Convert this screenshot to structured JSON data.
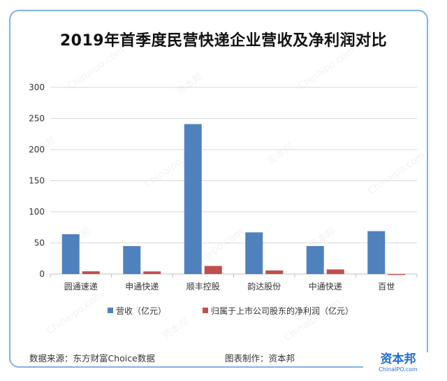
{
  "title": "2019年首季度民营快递企业营收及净利润对比",
  "chart_data": {
    "type": "bar",
    "categories": [
      "圆通速递",
      "申通快递",
      "顺丰控股",
      "韵达股份",
      "中通快递",
      "百世"
    ],
    "series": [
      {
        "name": "营收（亿元）",
        "color": "#4f81bd",
        "values": [
          64,
          45,
          241,
          67,
          45,
          69
        ]
      },
      {
        "name": "归属于上市公司股东的净利润（亿元）",
        "color": "#c0504d",
        "values": [
          4.4,
          4.2,
          13.0,
          5.8,
          7.4,
          -1.5
        ]
      }
    ],
    "ylim": [
      0,
      300
    ],
    "yticks": [
      0,
      50,
      100,
      150,
      200,
      250,
      300
    ],
    "grid": true,
    "legend": "bottom"
  },
  "footer": {
    "source": "数据来源：东方财富Choice数据",
    "credit": "图表制作：资本邦"
  },
  "logo": {
    "main": "资本邦",
    "sub": "ChinaIPO.com"
  },
  "watermark": {
    "cn": "资本邦",
    "en": "Chinaipo.com"
  }
}
